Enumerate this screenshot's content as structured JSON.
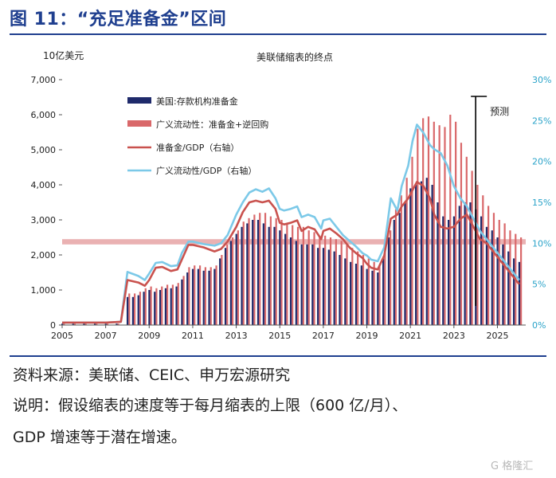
{
  "figure": {
    "title": "图 11：“充足准备金”区间",
    "source": "资料来源：美联储、CEIC、申万宏源研究",
    "note_line1": "说明：假设缩表的速度等于每月缩表的上限（600 亿/月）、",
    "note_line2": "GDP 增速等于潜在增速。",
    "watermark": "G 格隆汇"
  },
  "chart_data": {
    "type": "bar+line",
    "title": "美联储缩表的终点",
    "left_axis_unit": "10亿美元",
    "left_ylim": [
      0,
      7000
    ],
    "left_ticks": [
      "0",
      "1,000",
      "2,000",
      "3,000",
      "4,000",
      "5,000",
      "6,000",
      "7,000"
    ],
    "right_ylim": [
      0,
      30
    ],
    "right_ticks": [
      "0%",
      "5%",
      "10%",
      "15%",
      "20%",
      "25%",
      "30%"
    ],
    "xlim": [
      2005,
      2026.3
    ],
    "x_ticks": [
      "2005",
      "2007",
      "2009",
      "2011",
      "2013",
      "2015",
      "2017",
      "2019",
      "2021",
      "2023",
      "2025"
    ],
    "forecast_label": "预测",
    "forecast_x": 2024.0,
    "ample_band": {
      "from": 2300,
      "to": 2450,
      "color": "#e6a3a5"
    },
    "colors": {
      "reserves": "#1f2a6b",
      "broad": "#d9686a",
      "reserves_gdp": "#c9524e",
      "broad_gdp": "#7cc9e8",
      "axis_right": "#2aa3c9"
    },
    "series": [
      {
        "name": "美国:存款机构准备金",
        "kind": "bar",
        "axis": "left",
        "x": [
          2005.0,
          2005.5,
          2006.0,
          2006.5,
          2007.0,
          2007.5,
          2008.0,
          2008.25,
          2008.5,
          2008.75,
          2009.0,
          2009.25,
          2009.5,
          2009.75,
          2010.0,
          2010.25,
          2010.5,
          2010.75,
          2011.0,
          2011.25,
          2011.5,
          2011.75,
          2012.0,
          2012.25,
          2012.5,
          2012.75,
          2013.0,
          2013.25,
          2013.5,
          2013.75,
          2014.0,
          2014.25,
          2014.5,
          2014.75,
          2015.0,
          2015.25,
          2015.5,
          2015.75,
          2016.0,
          2016.25,
          2016.5,
          2016.75,
          2017.0,
          2017.25,
          2017.5,
          2017.75,
          2018.0,
          2018.25,
          2018.5,
          2018.75,
          2019.0,
          2019.25,
          2019.5,
          2019.75,
          2020.0,
          2020.25,
          2020.5,
          2020.75,
          2021.0,
          2021.25,
          2021.5,
          2021.75,
          2022.0,
          2022.25,
          2022.5,
          2022.75,
          2023.0,
          2023.25,
          2023.5,
          2023.75,
          2024.0,
          2024.25,
          2024.5,
          2024.75,
          2025.0,
          2025.25,
          2025.5,
          2025.75,
          2026.0
        ],
        "values": [
          40,
          40,
          40,
          40,
          40,
          40,
          800,
          800,
          850,
          950,
          1000,
          950,
          1000,
          1050,
          1050,
          1100,
          1300,
          1500,
          1600,
          1600,
          1550,
          1550,
          1600,
          1900,
          2200,
          2400,
          2600,
          2800,
          2900,
          3000,
          3000,
          2900,
          2800,
          2800,
          2700,
          2600,
          2500,
          2400,
          2300,
          2300,
          2300,
          2200,
          2200,
          2150,
          2100,
          2000,
          1900,
          1800,
          1750,
          1700,
          1600,
          1550,
          1500,
          1900,
          2500,
          3000,
          3200,
          3500,
          3900,
          4000,
          4100,
          4200,
          4000,
          3500,
          3100,
          3000,
          3100,
          3400,
          3500,
          3500,
          3300,
          3100,
          2800,
          2700,
          2500,
          2300,
          2100,
          1900,
          1800
        ]
      },
      {
        "name": "广义流动性：准备金+逆回购",
        "kind": "bar",
        "axis": "left",
        "x": [
          2005.0,
          2005.5,
          2006.0,
          2006.5,
          2007.0,
          2007.5,
          2008.0,
          2008.25,
          2008.5,
          2008.75,
          2009.0,
          2009.25,
          2009.5,
          2009.75,
          2010.0,
          2010.25,
          2010.5,
          2010.75,
          2011.0,
          2011.25,
          2011.5,
          2011.75,
          2012.0,
          2012.25,
          2012.5,
          2012.75,
          2013.0,
          2013.25,
          2013.5,
          2013.75,
          2014.0,
          2014.25,
          2014.5,
          2014.75,
          2015.0,
          2015.25,
          2015.5,
          2015.75,
          2016.0,
          2016.25,
          2016.5,
          2016.75,
          2017.0,
          2017.25,
          2017.5,
          2017.75,
          2018.0,
          2018.25,
          2018.5,
          2018.75,
          2019.0,
          2019.25,
          2019.5,
          2019.75,
          2020.0,
          2020.25,
          2020.5,
          2020.75,
          2021.0,
          2021.25,
          2021.5,
          2021.75,
          2022.0,
          2022.25,
          2022.5,
          2022.75,
          2023.0,
          2023.25,
          2023.5,
          2023.75,
          2024.0,
          2024.25,
          2024.5,
          2024.75,
          2025.0,
          2025.25,
          2025.5,
          2025.75,
          2026.0
        ],
        "values": [
          40,
          40,
          40,
          40,
          40,
          40,
          900,
          900,
          950,
          1050,
          1100,
          1050,
          1100,
          1150,
          1150,
          1200,
          1400,
          1650,
          1700,
          1700,
          1650,
          1650,
          1700,
          2000,
          2300,
          2500,
          2700,
          2950,
          3050,
          3150,
          3200,
          3200,
          3100,
          3050,
          3000,
          2900,
          2850,
          2800,
          2800,
          2700,
          2650,
          2550,
          2550,
          2500,
          2450,
          2400,
          2300,
          2200,
          2100,
          2000,
          1900,
          1800,
          1700,
          2100,
          2700,
          3300,
          3700,
          4200,
          4800,
          5600,
          5900,
          5950,
          5800,
          5700,
          5650,
          6000,
          5800,
          5200,
          4800,
          4400,
          4000,
          3700,
          3400,
          3200,
          3000,
          2900,
          2700,
          2600,
          2500
        ]
      },
      {
        "name": "准备金/GDP（右轴）",
        "kind": "line",
        "axis": "right",
        "x": [
          2005.0,
          2006.0,
          2007.0,
          2007.7,
          2008.0,
          2008.5,
          2008.8,
          2009.0,
          2009.3,
          2009.6,
          2010.0,
          2010.3,
          2010.5,
          2010.8,
          2011.0,
          2011.5,
          2012.0,
          2012.3,
          2012.6,
          2013.0,
          2013.3,
          2013.6,
          2013.9,
          2014.2,
          2014.5,
          2014.8,
          2015.0,
          2015.2,
          2015.5,
          2015.8,
          2016.0,
          2016.3,
          2016.6,
          2016.9,
          2017.0,
          2017.3,
          2017.6,
          2017.9,
          2018.2,
          2018.5,
          2018.8,
          2019.0,
          2019.2,
          2019.5,
          2019.8,
          2020.1,
          2020.4,
          2020.6,
          2020.9,
          2021.1,
          2021.3,
          2021.6,
          2021.9,
          2022.1,
          2022.4,
          2022.7,
          2023.0,
          2023.3,
          2023.6,
          2023.9,
          2024.2,
          2024.5,
          2024.8,
          2025.1,
          2025.4,
          2025.7,
          2026.0
        ],
        "values": [
          0.3,
          0.3,
          0.3,
          0.4,
          5.5,
          5.2,
          4.8,
          5.5,
          7.0,
          7.1,
          6.6,
          6.8,
          8.0,
          9.8,
          9.8,
          9.5,
          9.0,
          9.3,
          10.2,
          12.0,
          13.8,
          15.0,
          15.2,
          15.0,
          15.2,
          14.2,
          12.5,
          12.3,
          12.5,
          12.8,
          11.5,
          12.0,
          11.7,
          10.5,
          11.5,
          11.8,
          11.2,
          10.5,
          9.5,
          8.8,
          8.2,
          7.5,
          7.0,
          6.8,
          8.5,
          13.0,
          13.5,
          14.5,
          15.5,
          16.5,
          17.5,
          17.0,
          15.5,
          13.5,
          12.0,
          11.8,
          12.0,
          13.0,
          13.5,
          12.0,
          10.5,
          10.0,
          9.0,
          8.0,
          7.0,
          6.0,
          5.0
        ]
      },
      {
        "name": "广义流动性/GDP（右轴）",
        "kind": "line",
        "axis": "right",
        "x": [
          2005.0,
          2006.0,
          2007.0,
          2007.7,
          2008.0,
          2008.5,
          2008.8,
          2009.0,
          2009.3,
          2009.6,
          2010.0,
          2010.3,
          2010.5,
          2010.8,
          2011.0,
          2011.5,
          2012.0,
          2012.3,
          2012.6,
          2013.0,
          2013.3,
          2013.6,
          2013.9,
          2014.2,
          2014.5,
          2014.8,
          2015.0,
          2015.2,
          2015.5,
          2015.8,
          2016.0,
          2016.3,
          2016.6,
          2016.9,
          2017.0,
          2017.3,
          2017.6,
          2017.9,
          2018.2,
          2018.5,
          2018.8,
          2019.0,
          2019.2,
          2019.5,
          2019.8,
          2020.1,
          2020.4,
          2020.6,
          2020.9,
          2021.1,
          2021.3,
          2021.6,
          2021.9,
          2022.1,
          2022.4,
          2022.7,
          2023.0,
          2023.3,
          2023.6,
          2023.9,
          2024.2,
          2024.5,
          2024.8,
          2025.1,
          2025.4,
          2025.7,
          2026.0
        ],
        "values": [
          0.3,
          0.3,
          0.3,
          0.4,
          6.5,
          6.0,
          5.5,
          6.3,
          7.6,
          7.7,
          7.2,
          7.3,
          8.8,
          10.2,
          10.2,
          9.9,
          9.7,
          10.0,
          11.0,
          13.5,
          15.0,
          16.2,
          16.6,
          16.3,
          16.7,
          15.5,
          14.2,
          14.0,
          14.2,
          14.5,
          13.2,
          13.5,
          13.2,
          11.8,
          12.8,
          13.0,
          12.0,
          11.0,
          10.3,
          9.6,
          8.8,
          8.5,
          8.0,
          7.8,
          9.5,
          15.5,
          14.0,
          17.0,
          19.5,
          22.5,
          24.5,
          23.5,
          22.0,
          21.5,
          21.0,
          19.5,
          17.0,
          15.5,
          14.5,
          13.0,
          11.5,
          10.5,
          9.5,
          8.5,
          7.5,
          6.5,
          5.5
        ]
      }
    ]
  }
}
